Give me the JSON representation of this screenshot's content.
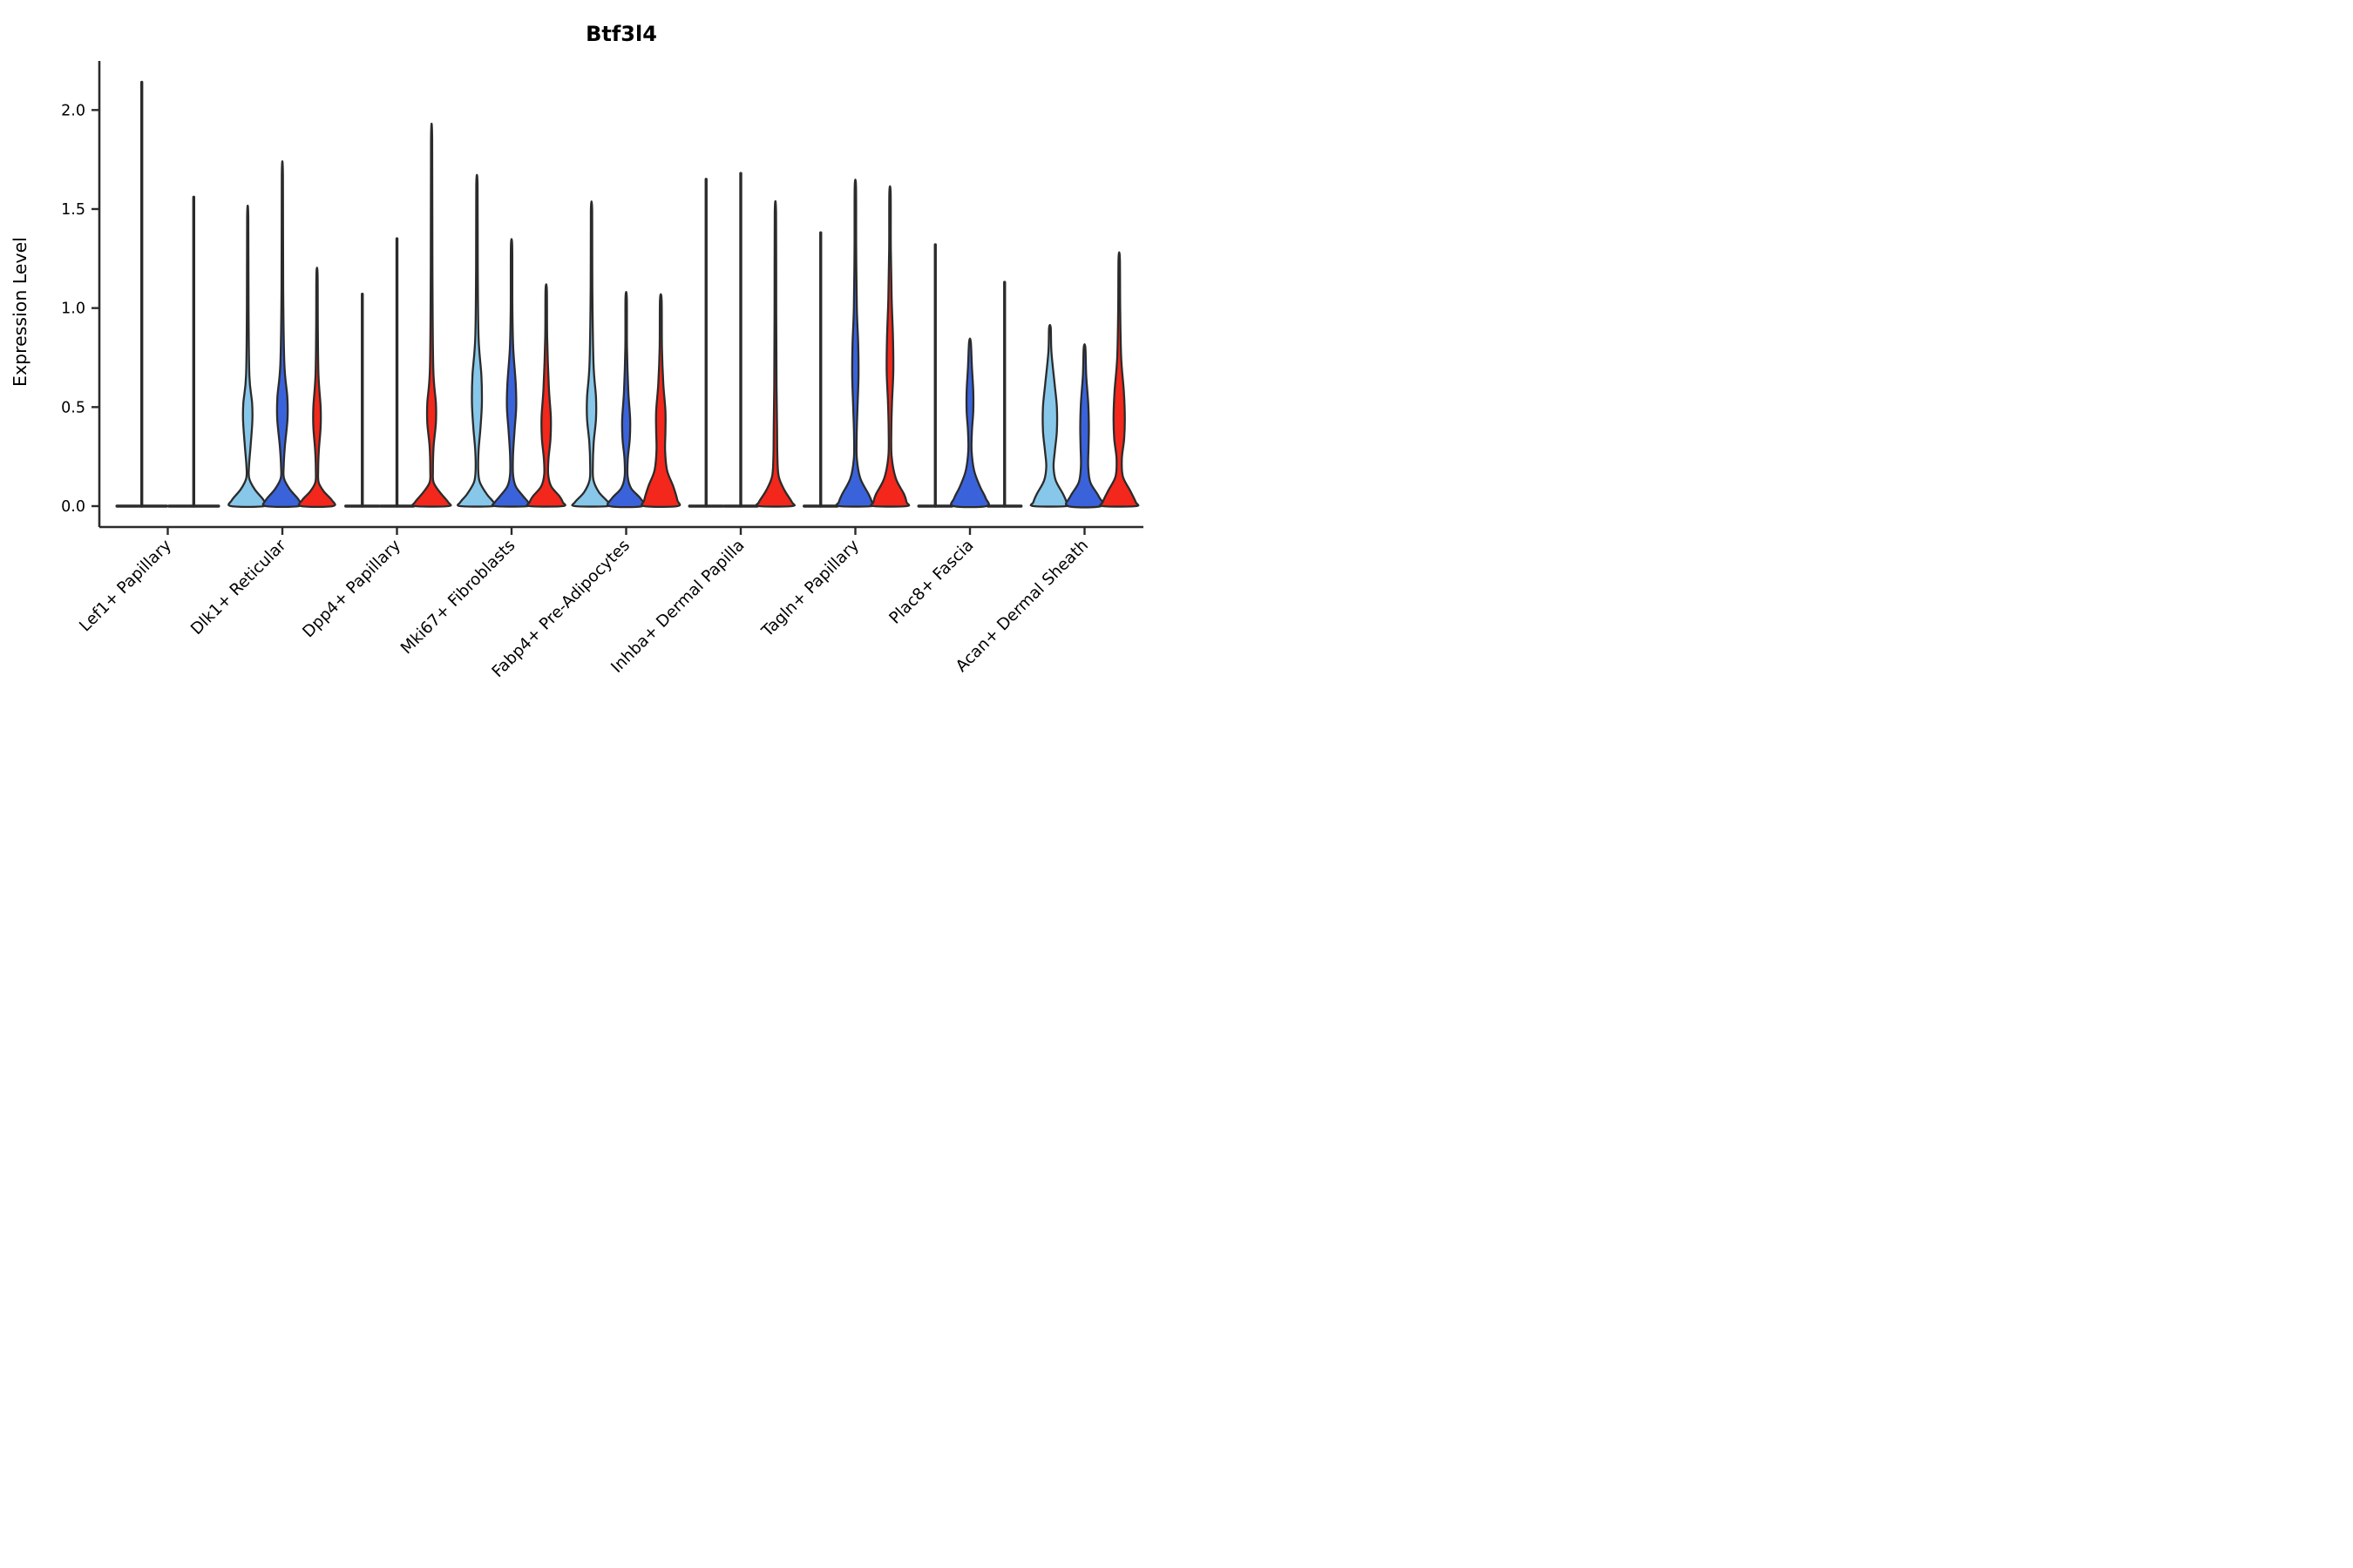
{
  "title": "Btf3l4",
  "chart_data": {
    "type": "violin",
    "title": "Btf3l4",
    "xlabel": "",
    "ylabel": "Expression Level",
    "ytick_labels": [
      "0.0",
      "0.5",
      "1.0",
      "1.5",
      "2.0"
    ],
    "ytick_values": [
      0,
      0.5,
      1.0,
      1.5,
      2.0
    ],
    "ylim": [
      -0.106,
      2.25
    ],
    "grid": "off",
    "legend": "none",
    "categories": [
      "Lef1+ Papillary",
      "Dlk1+ Reticular",
      "Dpp4+ Papillary",
      "Mki67+ Fibroblasts",
      "Fabp4+ Pre-Adipocytes",
      "Inhba+ Dermal Papilla",
      "Tagln+ Papillary",
      "Plac8+ Fascia",
      "Acan+ Dermal Sheath"
    ],
    "series": [
      {
        "name": "sky-blue-group",
        "color": "#87C7E9"
      },
      {
        "name": "royal-blue-group",
        "color": "#3A63DB"
      },
      {
        "name": "red-group",
        "color": "#F3271B"
      }
    ],
    "outline_color": "#2b2b2b",
    "violins": [
      {
        "c": 0,
        "s": 0,
        "max": 2.14,
        "off": -0.75,
        "w": 1.5,
        "flat": true
      },
      {
        "c": 0,
        "s": 2,
        "max": 1.56,
        "off": 0.75,
        "w": 1.5,
        "flat": true
      },
      {
        "c": 1,
        "s": 0,
        "max": 1.46,
        "off": -1,
        "w": 1,
        "profile": [
          [
            1.46,
            0.035
          ],
          [
            1.0,
            0.05
          ],
          [
            0.66,
            0.1
          ],
          [
            0.52,
            0.265
          ],
          [
            0.43,
            0.28
          ],
          [
            0.3,
            0.17
          ],
          [
            0.2,
            0.075
          ],
          [
            0.14,
            0.09
          ],
          [
            0.085,
            0.42
          ],
          [
            0.03,
            0.96
          ],
          [
            0,
            1
          ]
        ]
      },
      {
        "c": 1,
        "s": 1,
        "max": 1.67,
        "off": 0,
        "w": 1,
        "profile": [
          [
            1.67,
            0.035
          ],
          [
            1.1,
            0.05
          ],
          [
            0.72,
            0.12
          ],
          [
            0.55,
            0.3
          ],
          [
            0.44,
            0.31
          ],
          [
            0.3,
            0.15
          ],
          [
            0.2,
            0.08
          ],
          [
            0.14,
            0.1
          ],
          [
            0.085,
            0.45
          ],
          [
            0.03,
            1
          ],
          [
            0,
            1
          ]
        ]
      },
      {
        "c": 1,
        "s": 2,
        "max": 1.17,
        "off": 1,
        "w": 1,
        "profile": [
          [
            1.17,
            0.035
          ],
          [
            0.9,
            0.05
          ],
          [
            0.66,
            0.09
          ],
          [
            0.5,
            0.22
          ],
          [
            0.4,
            0.22
          ],
          [
            0.28,
            0.11
          ],
          [
            0.18,
            0.07
          ],
          [
            0.12,
            0.1
          ],
          [
            0.075,
            0.4
          ],
          [
            0.03,
            0.9
          ],
          [
            0,
            0.95
          ]
        ]
      },
      {
        "c": 2,
        "s": 0,
        "max": 1.07,
        "off": -1,
        "w": 1,
        "flat": true
      },
      {
        "c": 2,
        "s": 1,
        "max": 1.35,
        "off": 0,
        "w": 1,
        "flat": true
      },
      {
        "c": 2,
        "s": 2,
        "max": 1.85,
        "off": 1,
        "w": 1,
        "profile": [
          [
            1.85,
            0.035
          ],
          [
            1.2,
            0.05
          ],
          [
            0.7,
            0.1
          ],
          [
            0.52,
            0.26
          ],
          [
            0.42,
            0.26
          ],
          [
            0.3,
            0.12
          ],
          [
            0.18,
            0.08
          ],
          [
            0.12,
            0.12
          ],
          [
            0.07,
            0.5
          ],
          [
            0.02,
            1
          ],
          [
            0,
            1
          ]
        ]
      },
      {
        "c": 3,
        "s": 0,
        "max": 1.62,
        "off": -1,
        "w": 1,
        "profile": [
          [
            1.62,
            0.04
          ],
          [
            1.2,
            0.05
          ],
          [
            0.85,
            0.1
          ],
          [
            0.66,
            0.27
          ],
          [
            0.52,
            0.3
          ],
          [
            0.4,
            0.22
          ],
          [
            0.28,
            0.1
          ],
          [
            0.18,
            0.08
          ],
          [
            0.12,
            0.18
          ],
          [
            0.06,
            0.6
          ],
          [
            0.02,
            1
          ],
          [
            0,
            1
          ]
        ]
      },
      {
        "c": 3,
        "s": 1,
        "max": 1.31,
        "off": 0,
        "w": 1,
        "profile": [
          [
            1.31,
            0.04
          ],
          [
            1.0,
            0.05
          ],
          [
            0.8,
            0.1
          ],
          [
            0.62,
            0.25
          ],
          [
            0.5,
            0.28
          ],
          [
            0.38,
            0.18
          ],
          [
            0.26,
            0.09
          ],
          [
            0.16,
            0.09
          ],
          [
            0.1,
            0.25
          ],
          [
            0.05,
            0.7
          ],
          [
            0.02,
            1
          ],
          [
            0,
            1
          ]
        ]
      },
      {
        "c": 3,
        "s": 2,
        "max": 1.09,
        "off": 1,
        "w": 1,
        "profile": [
          [
            1.09,
            0.04
          ],
          [
            0.85,
            0.06
          ],
          [
            0.6,
            0.16
          ],
          [
            0.45,
            0.28
          ],
          [
            0.34,
            0.26
          ],
          [
            0.24,
            0.14
          ],
          [
            0.16,
            0.12
          ],
          [
            0.1,
            0.3
          ],
          [
            0.05,
            0.8
          ],
          [
            0.02,
            1
          ],
          [
            0,
            1
          ]
        ]
      },
      {
        "c": 4,
        "s": 0,
        "max": 1.49,
        "off": -1,
        "w": 1,
        "profile": [
          [
            1.49,
            0.04
          ],
          [
            1.1,
            0.05
          ],
          [
            0.72,
            0.12
          ],
          [
            0.55,
            0.27
          ],
          [
            0.44,
            0.27
          ],
          [
            0.32,
            0.13
          ],
          [
            0.2,
            0.08
          ],
          [
            0.13,
            0.12
          ],
          [
            0.07,
            0.45
          ],
          [
            0.02,
            1
          ],
          [
            0,
            1
          ]
        ]
      },
      {
        "c": 4,
        "s": 1,
        "max": 1.05,
        "off": 0,
        "w": 1,
        "profile": [
          [
            1.05,
            0.04
          ],
          [
            0.8,
            0.05
          ],
          [
            0.58,
            0.13
          ],
          [
            0.44,
            0.24
          ],
          [
            0.34,
            0.22
          ],
          [
            0.24,
            0.1
          ],
          [
            0.15,
            0.09
          ],
          [
            0.09,
            0.3
          ],
          [
            0.04,
            0.85
          ],
          [
            0,
            1
          ]
        ]
      },
      {
        "c": 4,
        "s": 2,
        "max": 1.04,
        "off": 1,
        "w": 1,
        "profile": [
          [
            1.04,
            0.05
          ],
          [
            0.8,
            0.07
          ],
          [
            0.62,
            0.15
          ],
          [
            0.48,
            0.28
          ],
          [
            0.38,
            0.28
          ],
          [
            0.28,
            0.26
          ],
          [
            0.18,
            0.38
          ],
          [
            0.1,
            0.75
          ],
          [
            0.03,
            1
          ],
          [
            0,
            1
          ]
        ]
      },
      {
        "c": 5,
        "s": 0,
        "max": 1.65,
        "off": -1,
        "w": 1,
        "flat": true
      },
      {
        "c": 5,
        "s": 1,
        "max": 1.68,
        "off": 0,
        "w": 1,
        "flat": true
      },
      {
        "c": 5,
        "s": 2,
        "max": 1.48,
        "off": 1,
        "w": 1,
        "profile": [
          [
            1.48,
            0.04
          ],
          [
            1.0,
            0.05
          ],
          [
            0.6,
            0.07
          ],
          [
            0.4,
            0.1
          ],
          [
            0.25,
            0.12
          ],
          [
            0.15,
            0.2
          ],
          [
            0.08,
            0.55
          ],
          [
            0.02,
            1
          ],
          [
            0,
            1
          ]
        ]
      },
      {
        "c": 6,
        "s": 0,
        "max": 1.38,
        "off": -1,
        "w": 1,
        "flat": true
      },
      {
        "c": 6,
        "s": 1,
        "max": 1.61,
        "off": 0,
        "w": 1,
        "profile": [
          [
            1.61,
            0.04
          ],
          [
            1.3,
            0.05
          ],
          [
            1.0,
            0.09
          ],
          [
            0.82,
            0.17
          ],
          [
            0.66,
            0.19
          ],
          [
            0.5,
            0.13
          ],
          [
            0.36,
            0.08
          ],
          [
            0.24,
            0.09
          ],
          [
            0.14,
            0.3
          ],
          [
            0.06,
            0.8
          ],
          [
            0.02,
            1
          ],
          [
            0,
            1
          ]
        ]
      },
      {
        "c": 6,
        "s": 2,
        "max": 1.58,
        "off": 1,
        "w": 1,
        "profile": [
          [
            1.58,
            0.04
          ],
          [
            1.3,
            0.05
          ],
          [
            1.05,
            0.1
          ],
          [
            0.85,
            0.18
          ],
          [
            0.68,
            0.2
          ],
          [
            0.52,
            0.12
          ],
          [
            0.38,
            0.08
          ],
          [
            0.25,
            0.1
          ],
          [
            0.14,
            0.35
          ],
          [
            0.06,
            0.85
          ],
          [
            0.02,
            1
          ],
          [
            0,
            1
          ]
        ]
      },
      {
        "c": 7,
        "s": 0,
        "max": 1.32,
        "off": -1,
        "w": 1,
        "flat": true
      },
      {
        "c": 7,
        "s": 1,
        "max": 0.83,
        "off": 0,
        "w": 1,
        "profile": [
          [
            0.83,
            0.05
          ],
          [
            0.7,
            0.12
          ],
          [
            0.58,
            0.2
          ],
          [
            0.48,
            0.2
          ],
          [
            0.38,
            0.12
          ],
          [
            0.28,
            0.1
          ],
          [
            0.18,
            0.25
          ],
          [
            0.1,
            0.6
          ],
          [
            0.04,
            0.95
          ],
          [
            0,
            1
          ]
        ]
      },
      {
        "c": 7,
        "s": 2,
        "max": 1.13,
        "off": 1,
        "w": 1,
        "flat": true
      },
      {
        "c": 8,
        "s": 0,
        "max": 0.9,
        "off": -1,
        "w": 1,
        "profile": [
          [
            0.9,
            0.05
          ],
          [
            0.78,
            0.09
          ],
          [
            0.62,
            0.28
          ],
          [
            0.5,
            0.42
          ],
          [
            0.38,
            0.42
          ],
          [
            0.28,
            0.3
          ],
          [
            0.2,
            0.22
          ],
          [
            0.13,
            0.35
          ],
          [
            0.06,
            0.8
          ],
          [
            0.02,
            1
          ],
          [
            0,
            1
          ]
        ]
      },
      {
        "c": 8,
        "s": 1,
        "max": 0.8,
        "off": 0,
        "w": 1,
        "profile": [
          [
            0.8,
            0.05
          ],
          [
            0.66,
            0.1
          ],
          [
            0.52,
            0.22
          ],
          [
            0.4,
            0.26
          ],
          [
            0.3,
            0.24
          ],
          [
            0.2,
            0.22
          ],
          [
            0.12,
            0.35
          ],
          [
            0.05,
            0.85
          ],
          [
            0,
            1
          ]
        ]
      },
      {
        "c": 8,
        "s": 2,
        "max": 1.25,
        "off": 1,
        "w": 1,
        "profile": [
          [
            1.25,
            0.04
          ],
          [
            1.0,
            0.06
          ],
          [
            0.75,
            0.12
          ],
          [
            0.58,
            0.28
          ],
          [
            0.45,
            0.34
          ],
          [
            0.34,
            0.3
          ],
          [
            0.24,
            0.16
          ],
          [
            0.15,
            0.22
          ],
          [
            0.08,
            0.65
          ],
          [
            0.02,
            1
          ],
          [
            0,
            1
          ]
        ]
      }
    ]
  }
}
